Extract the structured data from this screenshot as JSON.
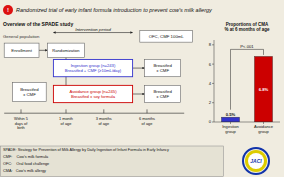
{
  "chart_data": {
    "type": "bar",
    "title": "Proportions of CMA\n% at 6 months of age",
    "categories": [
      "Ingestion\ngroup",
      "Avoidance\ngroup"
    ],
    "values": [
      0.5,
      6.8
    ],
    "value_labels": [
      "0.5%",
      "6.8%"
    ],
    "data_labels": true,
    "colors": [
      "#3333cc",
      "#cc0000"
    ],
    "ylim": [
      0,
      8.5
    ],
    "yticks": [
      0,
      2,
      4,
      6,
      8
    ],
    "grid": false,
    "annotations": [
      "Randomized trial of early infant formula introduction to prevent cow's milk allergy",
      "Overview of the SPADE study",
      "General population",
      "Enrollment",
      "Randomization",
      "OFC, CMF 100mL",
      "Ingestion group (n=243)\nBreastfed + CMF (≥10mL/day)",
      "Avoidance group (n=245)\nBreastfed ± soy formula",
      "Breastfed\n± CMF",
      "Breastfed\n± CMF",
      "Breastfed\n± CMF",
      "Intervention period",
      "Within 5\ndays of\nbirth",
      "1 month\nof age",
      "3 months\nof age",
      "6 months\nof age",
      "P<.001",
      "SPADE: Strategy for Prevention of Milk Allergy by Daily Ingestion of Infant Formula in Early Infancy",
      "CMF:    Cow's milk formula",
      "OFC:    Oral food challenge",
      "CMA:   Cow's milk allergy",
      "!",
      "JACI"
    ]
  }
}
